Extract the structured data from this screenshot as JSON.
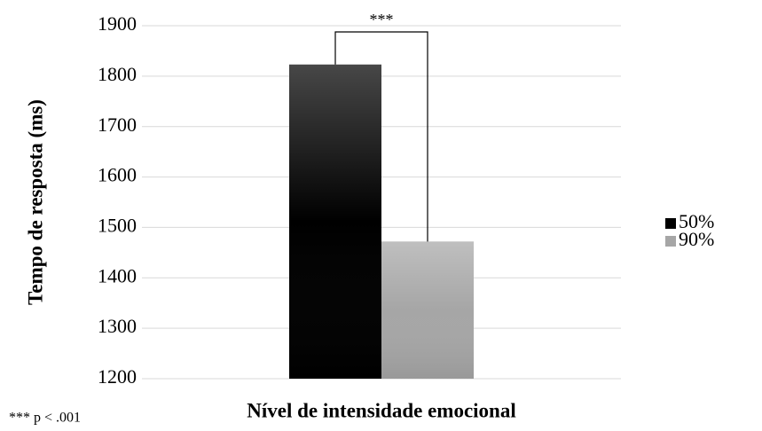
{
  "chart_data": {
    "type": "bar",
    "y_label": "Tempo de resposta (ms)",
    "x_label": "Nível de intensidade emocional",
    "categories": [
      null
    ],
    "series": [
      {
        "name": "50%",
        "color": "#000000",
        "values": [
          1823
        ]
      },
      {
        "name": "90%",
        "color": "#a6a6a6",
        "values": [
          1472
        ]
      }
    ],
    "ylim": [
      1200,
      1900
    ],
    "yticks": [
      1200,
      1300,
      1400,
      1500,
      1600,
      1700,
      1800,
      1900
    ],
    "grid": true,
    "legend": "right",
    "annotation": "***",
    "footnote": "*** p < .001"
  }
}
